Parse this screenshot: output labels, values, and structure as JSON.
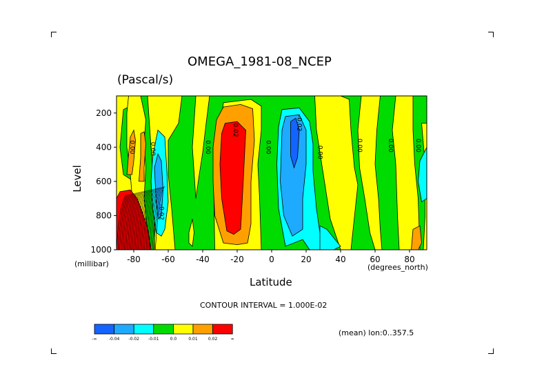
{
  "chart_data": {
    "type": "heatmap",
    "title": "OMEGA_1981-08_NCEP",
    "subtitle": "(Pascal/s)",
    "xlabel": "Latitude",
    "xunits": "(degrees_north)",
    "ylabel": "Level",
    "yunits": "(millibar)",
    "xlim": [
      -90,
      90
    ],
    "ylim": [
      1000,
      100
    ],
    "x_ticks": [
      "-80",
      "-60",
      "-40",
      "-20",
      "0",
      "20",
      "40",
      "60",
      "80"
    ],
    "x_tick_values": [
      -80,
      -60,
      -40,
      -20,
      0,
      20,
      40,
      60,
      80
    ],
    "y_ticks": [
      "200",
      "400",
      "600",
      "800",
      "1000"
    ],
    "y_tick_values": [
      200,
      400,
      600,
      800,
      1000
    ],
    "contour_interval": "CONTOUR INTERVAL = 1.000E-02",
    "contour_labels": [
      {
        "text": "0.00",
        "lat": -82,
        "level": 400
      },
      {
        "text": "0.00",
        "lat": -70,
        "level": 410
      },
      {
        "text": "0.00",
        "lat": -38,
        "level": 400
      },
      {
        "text": "0.02",
        "lat": -22,
        "level": 300
      },
      {
        "text": "0.00",
        "lat": -3,
        "level": 400
      },
      {
        "text": "-0.02",
        "lat": 15,
        "level": 260
      },
      {
        "text": "0.00",
        "lat": 27,
        "level": 430
      },
      {
        "text": "0.00",
        "lat": 50,
        "level": 390
      },
      {
        "text": "0.00",
        "lat": 68,
        "level": 390
      },
      {
        "text": "0.00",
        "lat": 84,
        "level": 390
      },
      {
        "text": "-0.02",
        "lat": -65,
        "level": 780
      }
    ],
    "colorbar": {
      "colors": [
        "#1464ff",
        "#1eaaff",
        "#00ffff",
        "#00dc00",
        "#ffff00",
        "#ffa000",
        "#ff0000"
      ],
      "labels": [
        "-∞",
        "-0.04",
        "-0.02",
        "-0.01",
        "0.0",
        "0.01",
        "0.02",
        "∞"
      ]
    },
    "annotation": "(mean) lon:0..357.5"
  }
}
